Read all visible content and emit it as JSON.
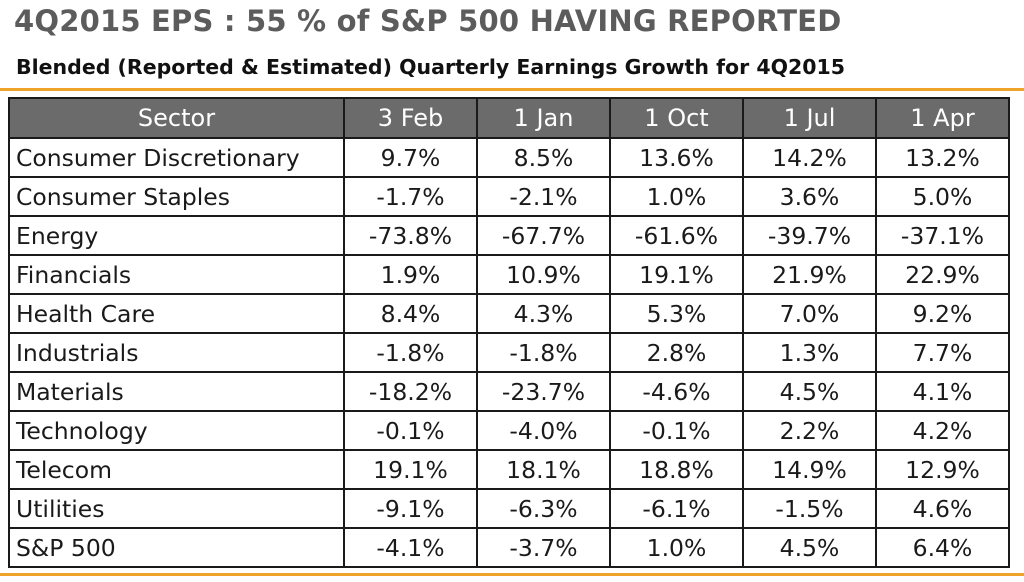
{
  "title": "4Q2015 EPS : 55 % of S&P 500 HAVING REPORTED",
  "subtitle": "Blended (Reported & Estimated) Quarterly Earnings Growth for 4Q2015",
  "colors": {
    "accent_rule": "#f0a32a",
    "header_bg": "#6b6b6b",
    "title_gray": "#5c5c5c"
  },
  "table": {
    "headers": [
      "Sector",
      "3 Feb",
      "1 Jan",
      "1 Oct",
      "1 Jul",
      "1 Apr"
    ],
    "rows": [
      [
        "Consumer Discretionary",
        "9.7%",
        "8.5%",
        "13.6%",
        "14.2%",
        "13.2%"
      ],
      [
        "Consumer Staples",
        "-1.7%",
        "-2.1%",
        "1.0%",
        "3.6%",
        "5.0%"
      ],
      [
        "Energy",
        "-73.8%",
        "-67.7%",
        "-61.6%",
        "-39.7%",
        "-37.1%"
      ],
      [
        "Financials",
        "1.9%",
        "10.9%",
        "19.1%",
        "21.9%",
        "22.9%"
      ],
      [
        "Health Care",
        "8.4%",
        "4.3%",
        "5.3%",
        "7.0%",
        "9.2%"
      ],
      [
        "Industrials",
        "-1.8%",
        "-1.8%",
        "2.8%",
        "1.3%",
        "7.7%"
      ],
      [
        "Materials",
        "-18.2%",
        "-23.7%",
        "-4.6%",
        "4.5%",
        "4.1%"
      ],
      [
        "Technology",
        "-0.1%",
        "-4.0%",
        "-0.1%",
        "2.2%",
        "4.2%"
      ],
      [
        "Telecom",
        "19.1%",
        "18.1%",
        "18.8%",
        "14.9%",
        "12.9%"
      ],
      [
        "Utilities",
        "-9.1%",
        "-6.3%",
        "-6.1%",
        "-1.5%",
        "4.6%"
      ],
      [
        "S&P 500",
        "-4.1%",
        "-3.7%",
        "1.0%",
        "4.5%",
        "6.4%"
      ]
    ]
  }
}
